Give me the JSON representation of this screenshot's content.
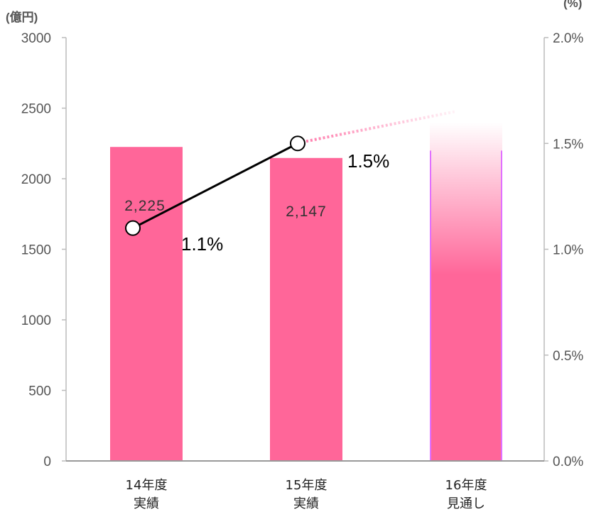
{
  "chart_data": {
    "type": "bar",
    "left_axis_unit": "(億円)",
    "right_axis_unit": "(%)",
    "categories": [
      {
        "line1": "14年度",
        "line2": "実績"
      },
      {
        "line1": "15年度",
        "line2": "実績"
      },
      {
        "line1": "16年度",
        "line2": "見通し"
      }
    ],
    "left_axis": {
      "min": 0,
      "max": 3000,
      "ticks": [
        "0",
        "500",
        "1000",
        "1500",
        "2000",
        "2500",
        "3000"
      ]
    },
    "right_axis": {
      "min": 0,
      "max": 2.0,
      "ticks": [
        "0.0%",
        "0.5%",
        "1.0%",
        "1.5%",
        "2.0%"
      ]
    },
    "bars": {
      "values": [
        2225,
        2147,
        2400
      ],
      "labels": [
        "2,225",
        "2,147",
        ""
      ],
      "color": "#ff6699",
      "projected": [
        false,
        false,
        true
      ]
    },
    "line": {
      "values": [
        1.1,
        1.5,
        1.65
      ],
      "labels": [
        "1.1%",
        "1.5%",
        ""
      ],
      "projected": [
        false,
        false,
        true
      ],
      "color": "#000000",
      "projected_color": "#ff7fae"
    }
  }
}
